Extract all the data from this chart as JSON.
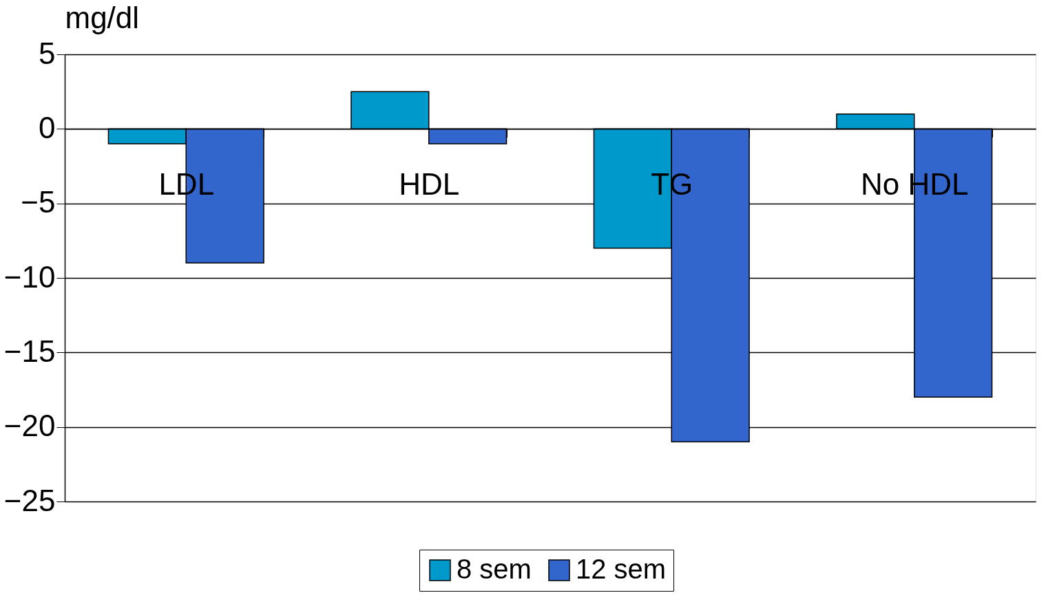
{
  "chart_data": {
    "type": "bar",
    "ylabel": "mg/dl",
    "categories": [
      "LDL",
      "HDL",
      "TG",
      "No HDL"
    ],
    "series": [
      {
        "name": "8 sem",
        "color": "#0099cc",
        "values": [
          -1,
          2.5,
          -8,
          1
        ]
      },
      {
        "name": "12 sem",
        "color": "#3366cc",
        "values": [
          -9,
          -1,
          -21,
          -18
        ]
      }
    ],
    "ylim": [
      -25,
      5
    ],
    "yticks": [
      -25,
      -20,
      -15,
      -10,
      -5,
      0,
      5
    ],
    "grid": "y",
    "legend": "bottom"
  }
}
